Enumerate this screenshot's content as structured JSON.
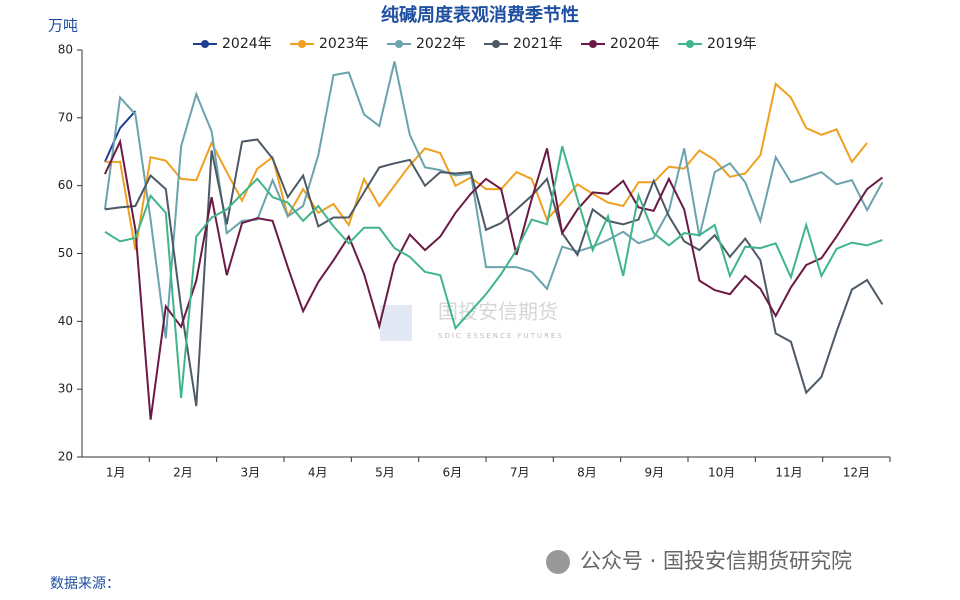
{
  "chart_data": {
    "type": "line",
    "title": "纯碱周度表观消费季节性",
    "y_unit": "万吨",
    "source": "数据来源：",
    "watermark": "国投安信期货",
    "watermark_sub": "SDIC ESSENCE FUTURES",
    "footer": "公众号 · 国投安信期货研究院",
    "categories": [
      "1月",
      "2月",
      "3月",
      "4月",
      "5月",
      "6月",
      "7月",
      "8月",
      "9月",
      "10月",
      "11月",
      "12月"
    ],
    "x": [
      1,
      2,
      3,
      4,
      5,
      6,
      7,
      8,
      9,
      10,
      11,
      12,
      13,
      14,
      15,
      16,
      17,
      18,
      19,
      20,
      21,
      22,
      23,
      24,
      25,
      26,
      27,
      28,
      29,
      30,
      31,
      32,
      33,
      34,
      35,
      36,
      37,
      38,
      39,
      40,
      41,
      42,
      43,
      44,
      45,
      46,
      47,
      48,
      49,
      50,
      51,
      52
    ],
    "xlim": [
      -0.5,
      52.5
    ],
    "ylim": [
      20,
      80
    ],
    "yticks": [
      20,
      30,
      40,
      50,
      60,
      70,
      80
    ],
    "series": [
      {
        "name": "2024年",
        "color": "#1f3f94",
        "values": [
          63.5,
          68.5,
          71,
          null,
          null,
          null,
          null,
          null,
          null,
          null,
          null,
          null,
          null,
          null,
          null,
          null,
          null,
          null,
          null,
          null,
          null,
          null,
          null,
          null,
          null,
          null,
          null,
          null,
          null,
          null,
          null,
          null,
          null,
          null,
          null,
          null,
          null,
          null,
          null,
          null,
          null,
          null,
          null,
          null,
          null,
          null,
          null,
          null,
          null,
          null,
          null,
          null
        ]
      },
      {
        "name": "2023年",
        "color": "#f0a020",
        "values": [
          63.5,
          63.5,
          50.5,
          64.2,
          63.7,
          61,
          60.8,
          66.3,
          62,
          57.8,
          62.5,
          64.2,
          55.5,
          59.5,
          56,
          57.3,
          54.2,
          61,
          57,
          60,
          63,
          65.5,
          64.8,
          60,
          61.2,
          59.5,
          59.5,
          62,
          61,
          55,
          57.5,
          60.2,
          58.8,
          57.5,
          57,
          60.5,
          60.5,
          62.8,
          62.5,
          65.2,
          63.8,
          61.3,
          61.8,
          64.5,
          75,
          73,
          68.5,
          67.5,
          68.3,
          63.5,
          66.3,
          null
        ]
      },
      {
        "name": "2022年",
        "color": "#6aa3ad",
        "values": [
          56.5,
          73,
          70.5,
          55,
          37.5,
          65.8,
          73.5,
          68,
          53,
          54.8,
          55,
          60.8,
          55.5,
          57,
          64.5,
          76.3,
          76.7,
          70.5,
          68.8,
          78.3,
          67.5,
          62.7,
          62.3,
          61.5,
          61.8,
          48,
          48,
          48,
          47.3,
          44.8,
          51,
          50.3,
          51,
          52,
          53.2,
          51.5,
          52.3,
          56.3,
          65.5,
          52.5,
          62,
          63.3,
          60.5,
          54.8,
          64.2,
          60.5,
          61.2,
          62,
          60.2,
          60.8,
          56.4,
          60.5
        ]
      },
      {
        "name": "2021年",
        "color": "#4d5a66",
        "values": [
          56.5,
          56.8,
          57,
          61.5,
          59.5,
          42,
          27.5,
          65.2,
          54.3,
          66.5,
          66.8,
          64,
          58.3,
          61.5,
          54,
          55.3,
          55.3,
          59,
          62.7,
          63.3,
          63.8,
          60,
          62,
          61.8,
          62,
          53.5,
          54.5,
          56.5,
          58.5,
          61,
          53,
          49.8,
          56.5,
          54.8,
          54.3,
          55,
          60.7,
          55.5,
          51.8,
          50.5,
          52.7,
          49.5,
          52.2,
          49,
          38.2,
          37,
          29.5,
          31.8,
          38.5,
          44.7,
          46.1,
          42.5
        ]
      },
      {
        "name": "2020年",
        "color": "#6b1a45",
        "values": [
          61.7,
          66.5,
          53.5,
          25.5,
          42.2,
          39.2,
          46,
          58.3,
          46.8,
          54.5,
          55.2,
          54.8,
          48,
          41.5,
          45.8,
          49,
          52.5,
          47,
          39.3,
          48.5,
          52.8,
          50.5,
          52.5,
          56,
          58.8,
          61,
          59.5,
          49.8,
          58,
          65.5,
          53,
          56.5,
          59,
          58.8,
          60.7,
          56.8,
          56.3,
          61,
          56.5,
          46,
          44.6,
          44,
          46.7,
          44.8,
          40.8,
          45,
          48.3,
          49.3,
          52.5,
          56,
          59.5,
          61.2
        ]
      },
      {
        "name": "2019年",
        "color": "#3fb58a",
        "values": [
          53.2,
          51.8,
          52.3,
          58.5,
          56,
          28.7,
          52.5,
          55.3,
          56.5,
          58.8,
          61,
          58.3,
          57.5,
          54.8,
          57,
          54,
          51.5,
          53.8,
          53.8,
          50.8,
          49.5,
          47.3,
          46.8,
          39,
          41.5,
          44,
          47,
          50.5,
          55,
          54.3,
          65.8,
          58,
          50.5,
          55.5,
          46.7,
          58.6,
          53,
          51.2,
          53,
          52.7,
          54.2,
          46.7,
          51,
          50.8,
          51.5,
          46.5,
          54.2,
          46.7,
          50.7,
          51.6,
          51.2,
          52
        ]
      }
    ]
  }
}
